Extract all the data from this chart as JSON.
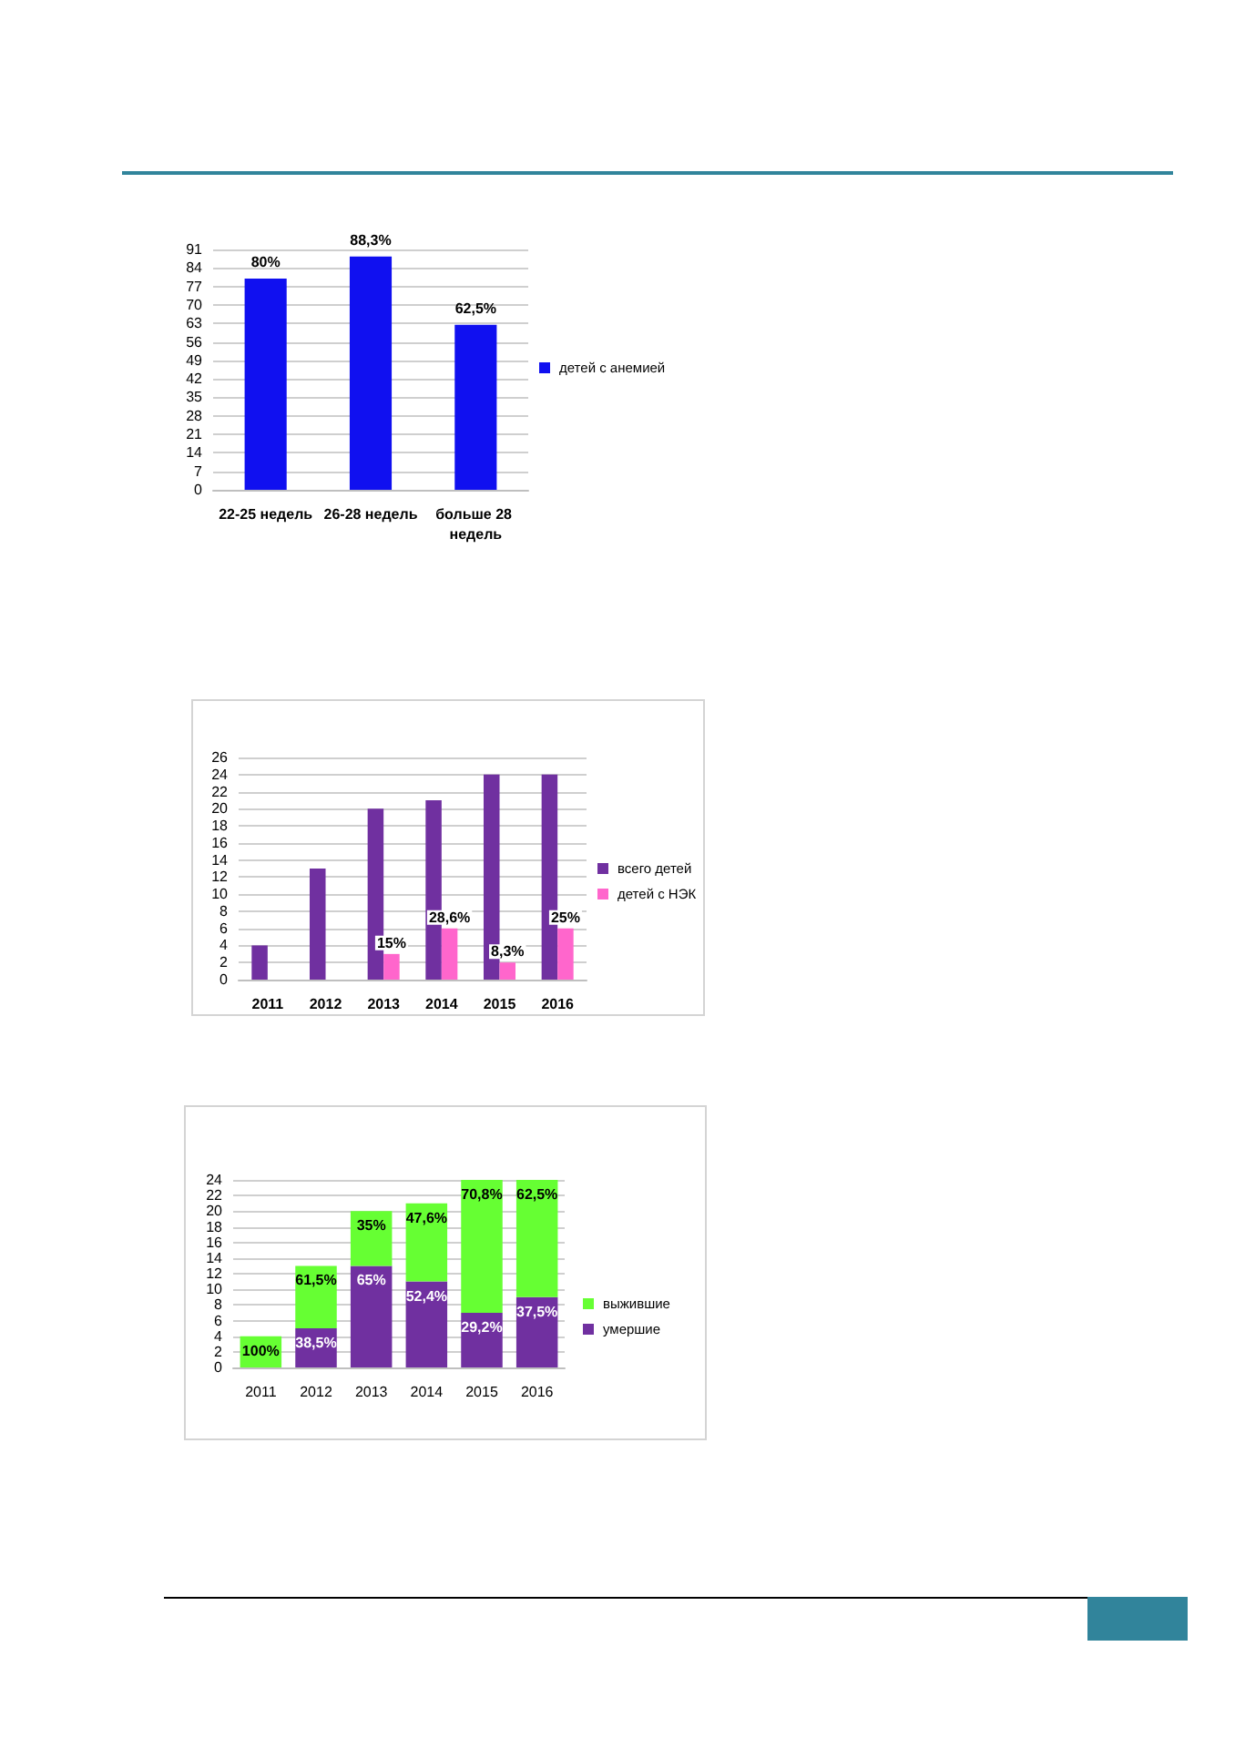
{
  "chart_data": [
    {
      "type": "bar",
      "categories": [
        "22-25 недель",
        "26-28 недель",
        "больше 28 недель"
      ],
      "series": [
        {
          "name": "детей с анемией",
          "color": "#1010f0",
          "values": [
            80,
            88.3,
            62.5
          ],
          "value_labels": [
            "80%",
            "88,3%",
            "62,5%"
          ]
        }
      ],
      "ylim": [
        0,
        91
      ],
      "yticks": [
        0,
        7,
        14,
        21,
        28,
        35,
        42,
        49,
        56,
        63,
        70,
        77,
        84,
        91
      ],
      "grid": "y",
      "legend": "right"
    },
    {
      "type": "bar",
      "categories": [
        "2011",
        "2012",
        "2013",
        "2014",
        "2015",
        "2016"
      ],
      "series": [
        {
          "name": "всего детей",
          "color": "#7030a0",
          "values": [
            4,
            13,
            20,
            21,
            24,
            24
          ]
        },
        {
          "name": "детей с НЭК",
          "color": "#ff66cc",
          "values": [
            null,
            null,
            3,
            6,
            2,
            6
          ]
        }
      ],
      "annotations": [
        {
          "text": "15%",
          "x": "2013",
          "y": 3
        },
        {
          "text": "28,6%",
          "x": "2014",
          "y": 6
        },
        {
          "text": "8,3%",
          "x": "2015",
          "y": 2
        },
        {
          "text": "25%",
          "x": "2016",
          "y": 6
        }
      ],
      "ylim": [
        0,
        26
      ],
      "yticks": [
        0,
        2,
        4,
        6,
        8,
        10,
        12,
        14,
        16,
        18,
        20,
        22,
        24,
        26
      ],
      "grid": "y",
      "legend": "right"
    },
    {
      "type": "bar",
      "stacked": true,
      "categories": [
        "2011",
        "2012",
        "2013",
        "2014",
        "2015",
        "2016"
      ],
      "series": [
        {
          "name": "умершие",
          "color": "#7030a0",
          "values": [
            0,
            5,
            13,
            11,
            7,
            9
          ]
        },
        {
          "name": "выжившие",
          "color": "#66ff33",
          "values": [
            4,
            8,
            7,
            10,
            17,
            15
          ]
        }
      ],
      "annotations": [
        {
          "text": "100%",
          "x": "2011",
          "y": 4
        },
        {
          "text": "61,5%",
          "x": "2012",
          "y": 13
        },
        {
          "text": "38,5%",
          "x": "2012",
          "y": 5
        },
        {
          "text": "35%",
          "x": "2013",
          "y": 20
        },
        {
          "text": "65%",
          "x": "2013",
          "y": 13
        },
        {
          "text": "47,6%",
          "x": "2014",
          "y": 21
        },
        {
          "text": "52,4%",
          "x": "2014",
          "y": 11
        },
        {
          "text": "70,8%",
          "x": "2015",
          "y": 24
        },
        {
          "text": "29,2%",
          "x": "2015",
          "y": 7
        },
        {
          "text": "62,5%",
          "x": "2016",
          "y": 24
        },
        {
          "text": "37,5%",
          "x": "2016",
          "y": 9
        }
      ],
      "ylim": [
        0,
        24
      ],
      "yticks": [
        0,
        2,
        4,
        6,
        8,
        10,
        12,
        14,
        16,
        18,
        20,
        22,
        24
      ],
      "grid": "y",
      "legend": "right"
    }
  ]
}
